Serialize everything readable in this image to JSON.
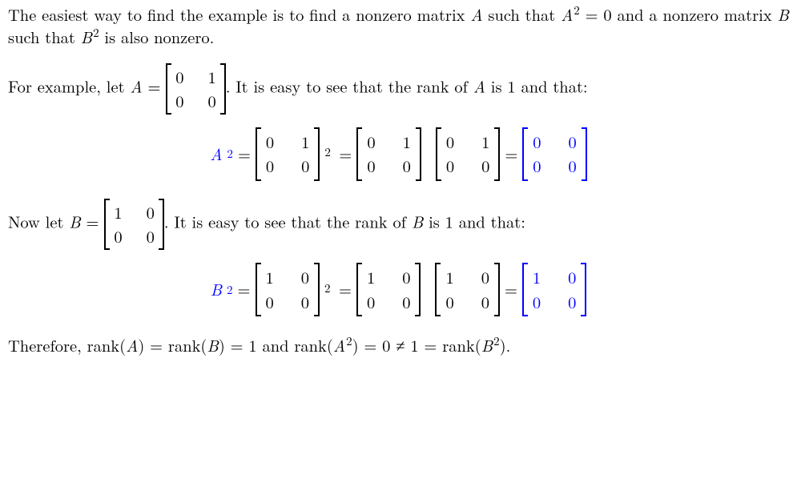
{
  "colors": {
    "accent": "#0000ff",
    "text": "#000000",
    "bg": "#ffffff"
  },
  "paragraphs": {
    "p1_a": "The easiest way to find the example is to find a nonzero matrix ",
    "p1_A": "A",
    "p1_b": " such that ",
    "p1_A2": "A",
    "p1_A2_sup": "2",
    "p1_eq0": " = 0 and a nonzero matrix ",
    "p1_B": "B",
    "p1_c": " such that ",
    "p1_B2": "B",
    "p1_B2_sup": "2",
    "p1_d": " is also nonzero.",
    "p2_a": "For example, let ",
    "p2_A": "A",
    "p2_eq": " = ",
    "p2_b": ". It is easy to see that the rank of ",
    "p2_A2": "A",
    "p2_c": " is 1 and that:",
    "p3_a": "Now let ",
    "p3_B": "B",
    "p3_eq": " = ",
    "p3_b": ". It is easy to see that the rank of ",
    "p3_B2": "B",
    "p3_c": " is 1 and that:",
    "p4_a": "Therefore, rank(",
    "p4_A": "A",
    "p4_b": ") = rank(",
    "p4_B": "B",
    "p4_c": ") = 1 and rank(",
    "p4_A2": "A",
    "p4_A2_sup": "2",
    "p4_d": ") = 0 ≠ 1 = rank(",
    "p4_B2": "B",
    "p4_B2_sup": "2",
    "p4_e": ")."
  },
  "symbols": {
    "eq": "=",
    "sq": "2"
  },
  "matrices": {
    "A": {
      "rows": [
        [
          "0",
          "1"
        ],
        [
          "0",
          "0"
        ]
      ],
      "color": "#000000"
    },
    "Z": {
      "rows": [
        [
          "0",
          "0"
        ],
        [
          "0",
          "0"
        ]
      ],
      "color": "#0000ff"
    },
    "B": {
      "rows": [
        [
          "1",
          "0"
        ],
        [
          "0",
          "0"
        ]
      ],
      "color": "#000000"
    },
    "Bsq": {
      "rows": [
        [
          "1",
          "0"
        ],
        [
          "0",
          "0"
        ]
      ],
      "color": "#0000ff"
    }
  },
  "equations": {
    "eqA": {
      "lhs_var": "A",
      "lhs_sup": "2",
      "lhs_color": "#0000ff",
      "m1": "A",
      "m1_sup": "2",
      "m2": "A",
      "m3": "A",
      "res": "Z"
    },
    "eqB": {
      "lhs_var": "B",
      "lhs_sup": "2",
      "lhs_color": "#0000ff",
      "m1": "B",
      "m1_sup": "2",
      "m2": "B",
      "m3": "B",
      "res": "Bsq"
    }
  }
}
